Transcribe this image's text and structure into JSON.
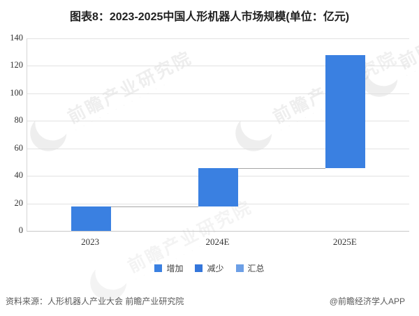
{
  "title": "图表8：2023-2025中国人形机器人市场规模(单位：亿元)",
  "chart_data": {
    "type": "bar",
    "subtype": "waterfall",
    "title": "图表8：2023-2025中国人形机器人市场规模(单位：亿元)",
    "unit": "亿元",
    "categories": [
      "2023",
      "2024E",
      "2025E"
    ],
    "segments": [
      {
        "category": "2023",
        "start": 0,
        "end": 17.9
      },
      {
        "category": "2024E",
        "start": 17.9,
        "end": 45.5
      },
      {
        "category": "2025E",
        "start": 45.5,
        "end": 127.9
      }
    ],
    "totals": [
      17.9,
      45.5,
      127.9
    ],
    "increments": [
      17.9,
      27.6,
      82.4
    ],
    "ylim": [
      0,
      140
    ],
    "yticks": [
      0,
      20,
      40,
      60,
      80,
      100,
      120,
      140
    ],
    "grid": true,
    "connector_lines": true,
    "legend_position": "bottom"
  },
  "legend": {
    "items": [
      {
        "label": "增加",
        "color": "#3A80E1"
      },
      {
        "label": "减少",
        "color": "#3476DB"
      },
      {
        "label": "汇总",
        "color": "#6C9FE6"
      }
    ]
  },
  "colors": {
    "bar": "#3A80E1",
    "grid": "#E2E2E2",
    "axis": "#C9C9C9",
    "connector": "#A6A6A6"
  },
  "footer": {
    "source": "资料来源：人形机器人产业大会 前瞻产业研究院",
    "credit": "@前瞻经济学人APP"
  },
  "watermark": {
    "text": "前瞻产业研究院",
    "subtext": "· · · · · · · · · · · ·"
  }
}
